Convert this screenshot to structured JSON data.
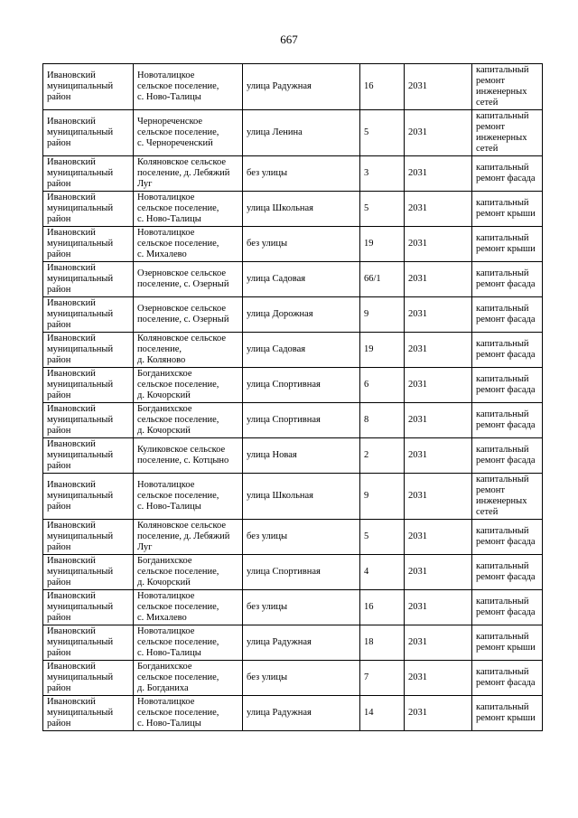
{
  "page": {
    "number": "667"
  },
  "table": {
    "rows": [
      {
        "district": "Ивановский\nмуниципальный\nрайон",
        "settlement": "Новоталицкое\nсельское поселение,\nс. Ново-Талицы",
        "street": "улица Радужная",
        "house": "16",
        "year": "2031",
        "work": "капитальный\nремонт\nинженерных\nсетей"
      },
      {
        "district": "Ивановский\nмуниципальный\nрайон",
        "settlement": "Чернореченское\nсельское поселение,\nс. Чернореченский",
        "street": "улица Ленина",
        "house": "5",
        "year": "2031",
        "work": "капитальный\nремонт\nинженерных\nсетей"
      },
      {
        "district": "Ивановский\nмуниципальный\nрайон",
        "settlement": "Коляновское сельское\nпоселение, д. Лебяжий\nЛуг",
        "street": "без улицы",
        "house": "3",
        "year": "2031",
        "work": "капитальный\nремонт фасада"
      },
      {
        "district": "Ивановский\nмуниципальный\nрайон",
        "settlement": "Новоталицкое\nсельское поселение,\nс. Ново-Талицы",
        "street": "улица Школьная",
        "house": "5",
        "year": "2031",
        "work": "капитальный\nремонт крыши"
      },
      {
        "district": "Ивановский\nмуниципальный\nрайон",
        "settlement": "Новоталицкое\nсельское поселение,\nс. Михалево",
        "street": "без улицы",
        "house": "19",
        "year": "2031",
        "work": "капитальный\nремонт крыши"
      },
      {
        "district": "Ивановский\nмуниципальный\nрайон",
        "settlement": "Озерновское сельское\nпоселение, с. Озерный",
        "street": "улица Садовая",
        "house": "66/1",
        "year": "2031",
        "work": "капитальный\nремонт фасада"
      },
      {
        "district": "Ивановский\nмуниципальный\nрайон",
        "settlement": "Озерновское сельское\nпоселение, с. Озерный",
        "street": "улица Дорожная",
        "house": "9",
        "year": "2031",
        "work": "капитальный\nремонт фасада"
      },
      {
        "district": "Ивановский\nмуниципальный\nрайон",
        "settlement": "Коляновское сельское\nпоселение,\nд. Коляново",
        "street": "улица Садовая",
        "house": "19",
        "year": "2031",
        "work": "капитальный\nремонт фасада"
      },
      {
        "district": "Ивановский\nмуниципальный\nрайон",
        "settlement": "Богданихское\nсельское поселение,\nд. Кочорский",
        "street": "улица Спортивная",
        "house": "6",
        "year": "2031",
        "work": "капитальный\nремонт фасада"
      },
      {
        "district": "Ивановский\nмуниципальный\nрайон",
        "settlement": "Богданихское\nсельское поселение,\nд. Кочорский",
        "street": "улица Спортивная",
        "house": "8",
        "year": "2031",
        "work": "капитальный\nремонт фасада"
      },
      {
        "district": "Ивановский\nмуниципальный\nрайон",
        "settlement": "Куликовское сельское\nпоселение, с. Котцыно",
        "street": "улица Новая",
        "house": "2",
        "year": "2031",
        "work": "капитальный\nремонт фасада"
      },
      {
        "district": "Ивановский\nмуниципальный\nрайон",
        "settlement": "Новоталицкое\nсельское поселение,\nс. Ново-Талицы",
        "street": "улица Школьная",
        "house": "9",
        "year": "2031",
        "work": "капитальный\nремонт\nинженерных\nсетей"
      },
      {
        "district": "Ивановский\nмуниципальный\nрайон",
        "settlement": "Коляновское сельское\nпоселение, д. Лебяжий\nЛуг",
        "street": "без улицы",
        "house": "5",
        "year": "2031",
        "work": "капитальный\nремонт фасада"
      },
      {
        "district": "Ивановский\nмуниципальный\nрайон",
        "settlement": "Богданихское\nсельское поселение,\nд. Кочорский",
        "street": "улица Спортивная",
        "house": "4",
        "year": "2031",
        "work": "капитальный\nремонт фасада"
      },
      {
        "district": "Ивановский\nмуниципальный\nрайон",
        "settlement": "Новоталицкое\nсельское поселение,\nс. Михалево",
        "street": "без улицы",
        "house": "16",
        "year": "2031",
        "work": "капитальный\nремонт фасада"
      },
      {
        "district": "Ивановский\nмуниципальный\nрайон",
        "settlement": "Новоталицкое\nсельское поселение,\nс. Ново-Талицы",
        "street": "улица Радужная",
        "house": "18",
        "year": "2031",
        "work": "капитальный\nремонт крыши"
      },
      {
        "district": "Ивановский\nмуниципальный\nрайон",
        "settlement": "Богданихское\nсельское поселение,\nд. Богданиха",
        "street": "без улицы",
        "house": "7",
        "year": "2031",
        "work": "капитальный\nремонт фасада"
      },
      {
        "district": "Ивановский\nмуниципальный\nрайон",
        "settlement": "Новоталицкое\nсельское поселение,\nс. Ново-Талицы",
        "street": "улица Радужная",
        "house": "14",
        "year": "2031",
        "work": "капитальный\nремонт крыши"
      }
    ]
  }
}
